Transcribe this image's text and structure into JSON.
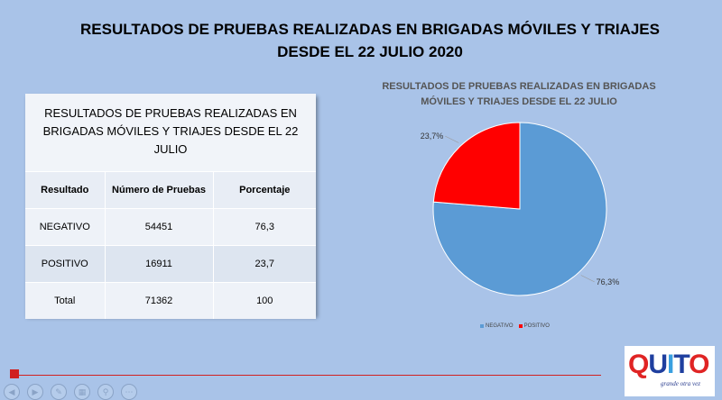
{
  "slide": {
    "title_line1": "RESULTADOS DE PRUEBAS REALIZADAS EN BRIGADAS MÓVILES Y TRIAJES",
    "title_line2": "DESDE EL 22 JULIO 2020"
  },
  "table": {
    "title": "RESULTADOS DE PRUEBAS REALIZADAS EN BRIGADAS MÓVILES Y TRIAJES DESDE EL 22 JULIO",
    "headers": [
      "Resultado",
      "Número de Pruebas",
      "Porcentaje"
    ],
    "rows": [
      [
        "NEGATIVO",
        "54451",
        "76,3"
      ],
      [
        "POSITIVO",
        "16911",
        "23,7"
      ],
      [
        "Total",
        "71362",
        "100"
      ]
    ]
  },
  "chart_data": {
    "type": "pie",
    "title": "RESULTADOS DE PRUEBAS REALIZADAS EN BRIGADAS MÓVILES Y TRIAJES DESDE EL 22 JULIO",
    "categories": [
      "NEGATIVO",
      "POSITIVO"
    ],
    "values": [
      76.3,
      23.7
    ],
    "labels": [
      "76,3%",
      "23,7%"
    ],
    "colors": [
      "#5b9bd5",
      "#ff0000"
    ],
    "legend": "bottom"
  },
  "logo": {
    "letters": [
      "Q",
      "U",
      "I",
      "T",
      "O"
    ],
    "tagline": "grande otra vez",
    "colors": [
      "#e02424",
      "#1f3f9f",
      "#3aa0e0",
      "#1f3f9f",
      "#e02424"
    ]
  },
  "controls": [
    "prev-icon",
    "next-icon",
    "pen-icon",
    "slides-icon",
    "zoom-icon",
    "more-icon"
  ],
  "accent_color": "#d02020"
}
